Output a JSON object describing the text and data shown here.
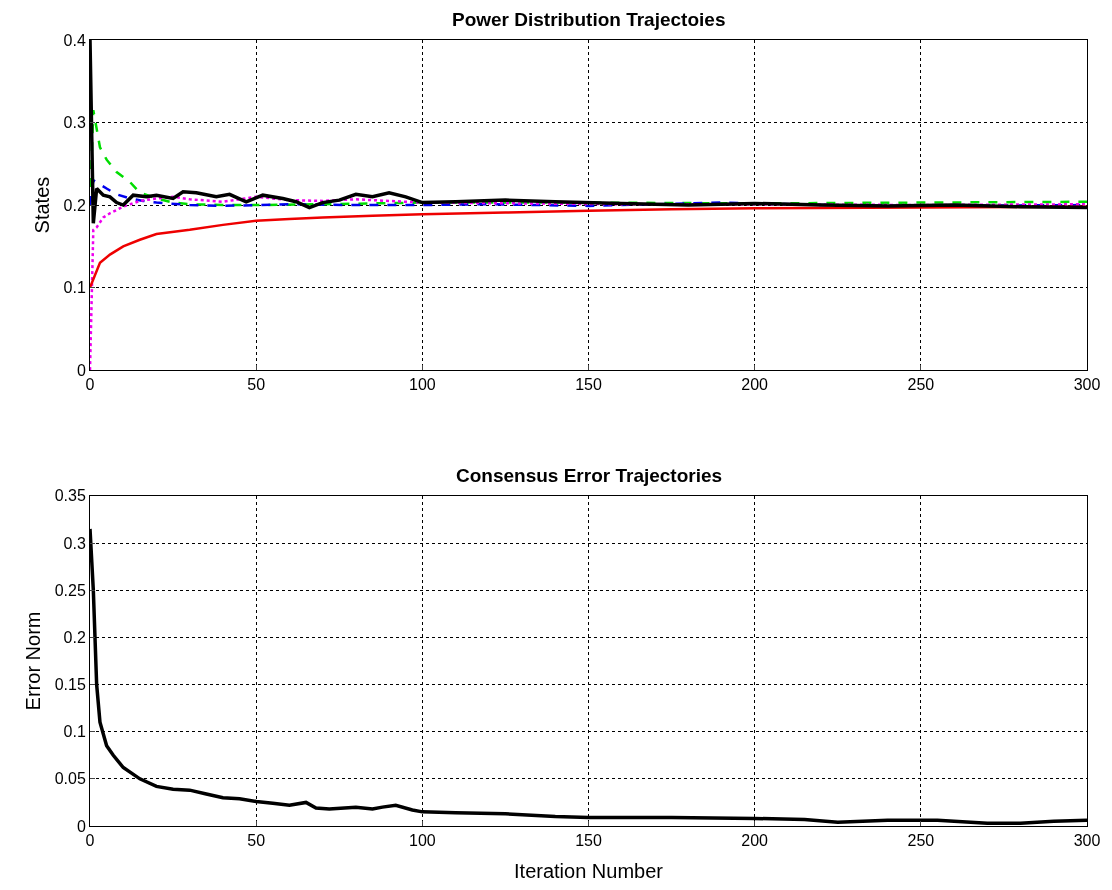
{
  "chart_data": [
    {
      "type": "line",
      "title": "Power Distribution Trajectoies",
      "ylabel": "States",
      "xlim": [
        0,
        300
      ],
      "ylim": [
        0,
        0.4
      ],
      "xticks": [
        0,
        50,
        100,
        150,
        200,
        250,
        300
      ],
      "yticks": [
        0,
        0.1,
        0.2,
        0.3,
        0.4
      ],
      "grid": true,
      "series": [
        {
          "color": "#00dd00",
          "line_style": "dashed",
          "x": [
            0,
            1,
            3,
            5,
            8,
            12,
            15,
            20,
            25,
            30,
            40,
            50,
            70,
            100,
            150,
            200,
            250,
            300
          ],
          "values": [
            0.2,
            0.315,
            0.27,
            0.255,
            0.24,
            0.228,
            0.215,
            0.208,
            0.203,
            0.201,
            0.2,
            0.2,
            0.201,
            0.203,
            0.203,
            0.202,
            0.203,
            0.204
          ]
        },
        {
          "color": "#0000ee",
          "line_style": "dashed",
          "x": [
            0,
            1,
            3,
            5,
            8,
            12,
            16,
            20,
            30,
            40,
            50,
            60,
            80,
            100,
            120,
            150,
            190,
            220,
            250,
            300
          ],
          "values": [
            0.2,
            0.23,
            0.225,
            0.22,
            0.213,
            0.208,
            0.205,
            0.203,
            0.2,
            0.199,
            0.2,
            0.201,
            0.2,
            0.2,
            0.201,
            0.199,
            0.203,
            0.2,
            0.199,
            0.2
          ]
        },
        {
          "color": "#ee00ee",
          "line_style": "dotted",
          "x": [
            0,
            1,
            2,
            4,
            6,
            10,
            15,
            20,
            25,
            30,
            40,
            50,
            60,
            70,
            80,
            100,
            130,
            160,
            200,
            250,
            300
          ],
          "values": [
            0,
            0.17,
            0.173,
            0.185,
            0.19,
            0.198,
            0.205,
            0.208,
            0.21,
            0.207,
            0.204,
            0.21,
            0.206,
            0.205,
            0.207,
            0.203,
            0.202,
            0.201,
            0.201,
            0.2,
            0.201
          ]
        },
        {
          "color": "#ee0000",
          "line_style": "solid",
          "x": [
            0,
            1,
            3,
            6,
            10,
            15,
            20,
            30,
            40,
            50,
            60,
            70,
            85,
            100,
            125,
            150,
            175,
            200,
            250,
            300
          ],
          "values": [
            0.1,
            0.11,
            0.13,
            0.14,
            0.15,
            0.158,
            0.165,
            0.17,
            0.176,
            0.181,
            0.183,
            0.185,
            0.187,
            0.189,
            0.191,
            0.193,
            0.195,
            0.196,
            0.197,
            0.198
          ]
        },
        {
          "color": "#000000",
          "line_style": "solid",
          "x": [
            0,
            1,
            2,
            4,
            6,
            8,
            10,
            13,
            17,
            20,
            25,
            28,
            32,
            38,
            42,
            47,
            52,
            58,
            62,
            66,
            70,
            75,
            80,
            85,
            90,
            95,
            100,
            110,
            125,
            140,
            160,
            180,
            200,
            220,
            240,
            260,
            280,
            300
          ],
          "values": [
            0.4,
            0.178,
            0.22,
            0.212,
            0.21,
            0.203,
            0.2,
            0.212,
            0.21,
            0.212,
            0.208,
            0.216,
            0.215,
            0.21,
            0.213,
            0.204,
            0.212,
            0.208,
            0.204,
            0.197,
            0.203,
            0.206,
            0.213,
            0.21,
            0.215,
            0.21,
            0.203,
            0.204,
            0.206,
            0.204,
            0.202,
            0.2,
            0.202,
            0.2,
            0.199,
            0.2,
            0.198,
            0.197
          ]
        }
      ]
    },
    {
      "type": "line",
      "title": "Consensus Error Trajectories",
      "xlabel": "Iteration Number",
      "ylabel": "Error Norm",
      "xlim": [
        0,
        300
      ],
      "ylim": [
        0,
        0.35
      ],
      "xticks": [
        0,
        50,
        100,
        150,
        200,
        250,
        300
      ],
      "yticks": [
        0,
        0.05,
        0.1,
        0.15,
        0.2,
        0.25,
        0.3,
        0.35
      ],
      "grid": true,
      "series": [
        {
          "color": "#000000",
          "line_style": "solid",
          "x": [
            0,
            1,
            2,
            3,
            5,
            7,
            10,
            15,
            20,
            25,
            30,
            35,
            40,
            45,
            50,
            55,
            60,
            65,
            68,
            72,
            80,
            85,
            88,
            92,
            97,
            100,
            110,
            125,
            140,
            150,
            175,
            200,
            215,
            225,
            240,
            255,
            270,
            280,
            290,
            300
          ],
          "values": [
            0.315,
            0.25,
            0.15,
            0.11,
            0.085,
            0.075,
            0.062,
            0.05,
            0.042,
            0.039,
            0.038,
            0.034,
            0.03,
            0.029,
            0.026,
            0.024,
            0.022,
            0.025,
            0.019,
            0.018,
            0.02,
            0.018,
            0.02,
            0.022,
            0.017,
            0.015,
            0.014,
            0.013,
            0.01,
            0.009,
            0.009,
            0.008,
            0.007,
            0.004,
            0.006,
            0.006,
            0.003,
            0.003,
            0.005,
            0.006
          ]
        }
      ]
    }
  ]
}
